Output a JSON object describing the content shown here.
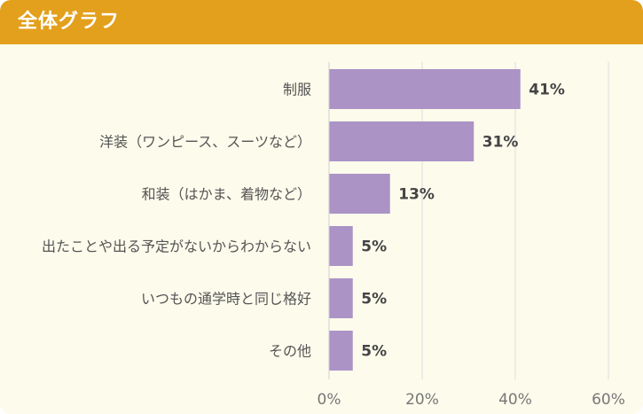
{
  "header": {
    "title": "全体グラフ"
  },
  "chart_data": {
    "type": "bar",
    "orientation": "horizontal",
    "title": "全体グラフ",
    "categories": [
      "制服",
      "洋装（ワンピース、スーツなど）",
      "和装（はかま、着物など）",
      "出たことや出る予定がないからわからない",
      "いつもの通学時と同じ格好",
      "その他"
    ],
    "values": [
      41,
      31,
      13,
      5,
      5,
      5
    ],
    "value_labels": [
      "41%",
      "31%",
      "13%",
      "5%",
      "5%",
      "5%"
    ],
    "xlim": [
      0,
      60
    ],
    "xticks": [
      0,
      20,
      40,
      60
    ],
    "xtick_labels": [
      "0%",
      "20%",
      "40%",
      "60%"
    ],
    "grid": true,
    "colors": {
      "bar": "#ab93c6",
      "header": "#e3a01d",
      "background": "#fdfbec",
      "grid": "#dcdcdc"
    }
  }
}
